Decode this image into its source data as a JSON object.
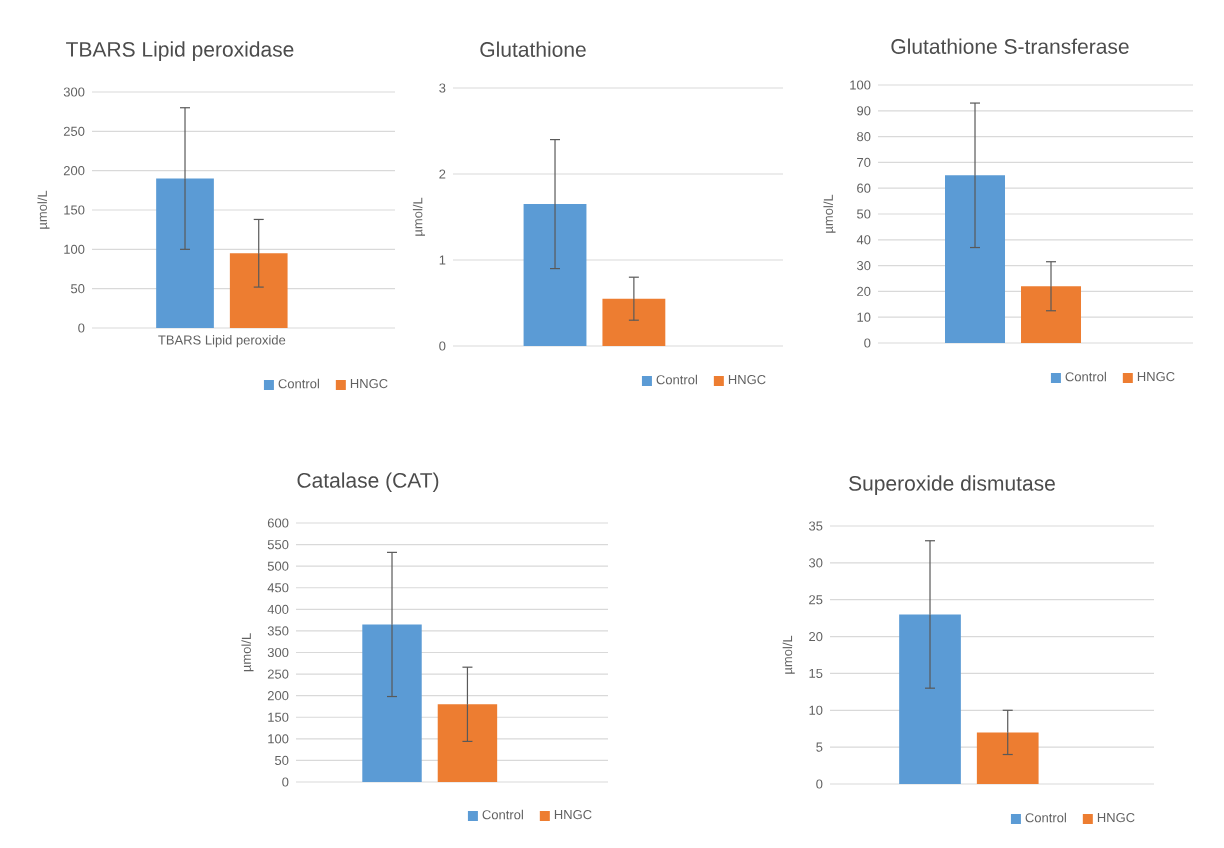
{
  "chart_data": [
    {
      "type": "bar",
      "title": "TBARS Lipid peroxidase",
      "ylabel": "µmol/L",
      "categories": [
        "TBARS Lipid peroxide"
      ],
      "series": [
        {
          "name": "Control",
          "color": "#5b9bd5",
          "values": [
            190
          ],
          "errors": [
            90
          ]
        },
        {
          "name": "HNGC",
          "color": "#ed7d31",
          "values": [
            95
          ],
          "errors": [
            43
          ]
        }
      ],
      "ylim": [
        0,
        300
      ],
      "yticks": [
        0,
        50,
        100,
        150,
        200,
        250,
        300
      ],
      "grid": "y",
      "legend": "bottom"
    },
    {
      "type": "bar",
      "title": "Glutathione",
      "ylabel": "µmol/L",
      "categories": [
        null
      ],
      "series": [
        {
          "name": "Control",
          "color": "#5b9bd5",
          "values": [
            1.65
          ],
          "errors": [
            0.75
          ]
        },
        {
          "name": "HNGC",
          "color": "#ed7d31",
          "values": [
            0.55
          ],
          "errors": [
            0.25
          ]
        }
      ],
      "ylim": [
        0,
        3
      ],
      "yticks": [
        0,
        1,
        2,
        3
      ],
      "grid": "y",
      "legend": "bottom"
    },
    {
      "type": "bar",
      "title": "Glutathione S-transferase",
      "ylabel": "µmol/L",
      "categories": [
        null
      ],
      "series": [
        {
          "name": "Control",
          "color": "#5b9bd5",
          "values": [
            65
          ],
          "errors": [
            28
          ]
        },
        {
          "name": "HNGC",
          "color": "#ed7d31",
          "values": [
            22
          ],
          "errors": [
            9.5
          ]
        }
      ],
      "ylim": [
        0,
        100
      ],
      "yticks": [
        0,
        10,
        20,
        30,
        40,
        50,
        60,
        70,
        80,
        90,
        100
      ],
      "grid": "y",
      "legend": "bottom"
    },
    {
      "type": "bar",
      "title": "Catalase (CAT)",
      "ylabel": "µmol/L",
      "categories": [
        null
      ],
      "series": [
        {
          "name": "Control",
          "color": "#5b9bd5",
          "values": [
            365
          ],
          "errors": [
            167
          ]
        },
        {
          "name": "HNGC",
          "color": "#ed7d31",
          "values": [
            180
          ],
          "errors": [
            86
          ]
        }
      ],
      "ylim": [
        0,
        600
      ],
      "yticks": [
        0,
        50,
        100,
        150,
        200,
        250,
        300,
        350,
        400,
        450,
        500,
        550,
        600
      ],
      "grid": "y",
      "legend": "bottom"
    },
    {
      "type": "bar",
      "title": "Superoxide dismutase",
      "ylabel": "µmol/L",
      "categories": [
        null
      ],
      "series": [
        {
          "name": "Control",
          "color": "#5b9bd5",
          "values": [
            23
          ],
          "errors": [
            10
          ]
        },
        {
          "name": "HNGC",
          "color": "#ed7d31",
          "values": [
            7
          ],
          "errors": [
            3
          ]
        }
      ],
      "ylim": [
        0,
        35
      ],
      "yticks": [
        0,
        5,
        10,
        15,
        20,
        25,
        30,
        35
      ],
      "grid": "y",
      "legend": "bottom"
    }
  ]
}
